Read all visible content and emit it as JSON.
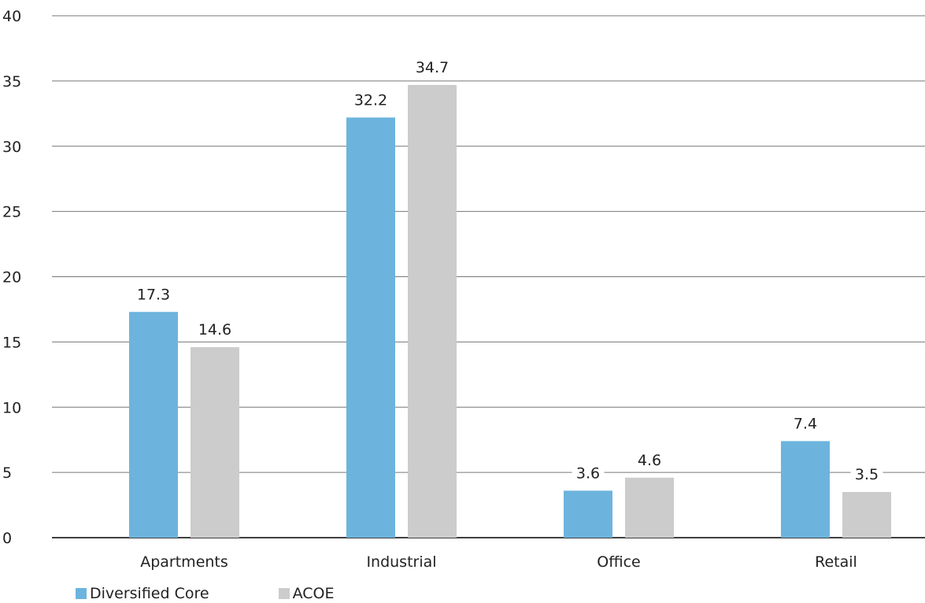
{
  "chart_data": {
    "type": "bar",
    "categories": [
      "Apartments",
      "Industrial",
      "Office",
      "Retail"
    ],
    "series": [
      {
        "name": "Diversified Core",
        "values": [
          17.3,
          32.2,
          3.6,
          7.4
        ],
        "color": "#6cb4dd"
      },
      {
        "name": "ACOE",
        "values": [
          14.6,
          34.7,
          4.6,
          3.5
        ],
        "color": "#cccccc"
      }
    ],
    "ylim": [
      0,
      40
    ],
    "yticks": [
      0,
      5,
      10,
      15,
      20,
      25,
      30,
      35,
      40
    ],
    "grid": true,
    "legend_position": "bottom-left",
    "title": "",
    "xlabel": "",
    "ylabel": ""
  }
}
